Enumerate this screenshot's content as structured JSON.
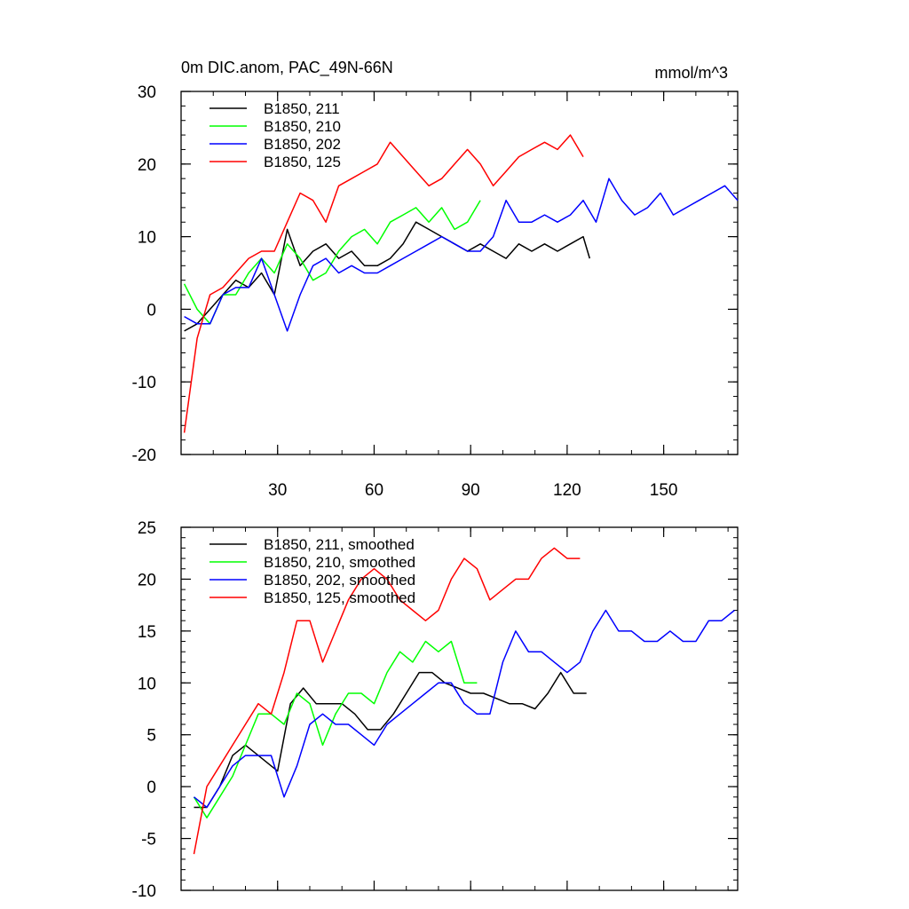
{
  "chart_data": [
    {
      "type": "line",
      "title": "0m DIC.anom, PAC_49N-66N",
      "units": "mmol/m^3",
      "xlim": [
        0,
        173
      ],
      "ylim": [
        -20,
        30
      ],
      "yticks": [
        -20,
        -10,
        0,
        10,
        20,
        30
      ],
      "xticks": [
        30,
        60,
        90,
        120,
        150
      ],
      "x_tick_labels_shown": true,
      "series": [
        {
          "name": "B1850, 211",
          "color": "#000000",
          "x": [
            1,
            5,
            9,
            13,
            17,
            21,
            25,
            29,
            33,
            37,
            41,
            45,
            49,
            53,
            57,
            61,
            65,
            69,
            73,
            77,
            81,
            85,
            89,
            93,
            97,
            101,
            105,
            109,
            113,
            117,
            121,
            125,
            127
          ],
          "values": [
            -3,
            -2,
            0,
            2,
            4,
            3,
            5,
            2,
            11,
            6,
            8,
            9,
            7,
            8,
            6,
            6,
            7,
            9,
            12,
            11,
            10,
            9,
            8,
            9,
            8,
            7,
            9,
            8,
            9,
            8,
            9,
            10,
            7
          ]
        },
        {
          "name": "B1850, 210",
          "color": "#00ff00",
          "x": [
            1,
            5,
            9,
            13,
            17,
            21,
            25,
            29,
            33,
            37,
            41,
            45,
            49,
            53,
            57,
            61,
            65,
            69,
            73,
            77,
            81,
            85,
            89,
            93
          ],
          "values": [
            3.5,
            0,
            -2,
            2,
            2,
            5,
            7,
            5,
            9,
            7,
            4,
            5,
            8,
            10,
            11,
            9,
            12,
            13,
            14,
            12,
            14,
            11,
            12,
            15
          ]
        },
        {
          "name": "B1850, 202",
          "color": "#0000ff",
          "x": [
            1,
            5,
            9,
            13,
            17,
            21,
            25,
            29,
            33,
            37,
            41,
            45,
            49,
            53,
            57,
            61,
            65,
            69,
            73,
            77,
            81,
            85,
            89,
            93,
            97,
            101,
            105,
            109,
            113,
            117,
            121,
            125,
            129,
            133,
            137,
            141,
            145,
            149,
            153,
            157,
            161,
            165,
            169,
            173
          ],
          "values": [
            -1,
            -2,
            -2,
            2,
            3,
            3,
            7,
            2,
            -3,
            2,
            6,
            7,
            5,
            6,
            5,
            5,
            6,
            7,
            8,
            9,
            10,
            9,
            8,
            8,
            10,
            15,
            12,
            12,
            13,
            12,
            13,
            15,
            12,
            18,
            15,
            13,
            14,
            16,
            13,
            14,
            15,
            16,
            17,
            15
          ]
        },
        {
          "name": "B1850, 125",
          "color": "#ff0000",
          "x": [
            1,
            5,
            9,
            13,
            17,
            21,
            25,
            29,
            33,
            37,
            41,
            45,
            49,
            53,
            57,
            61,
            65,
            69,
            73,
            77,
            81,
            85,
            89,
            93,
            97,
            101,
            105,
            109,
            113,
            117,
            121,
            125
          ],
          "values": [
            -17,
            -4,
            2,
            3,
            5,
            7,
            8,
            8,
            12,
            16,
            15,
            12,
            17,
            18,
            19,
            20,
            23,
            21,
            19,
            17,
            18,
            20,
            22,
            20,
            17,
            19,
            21,
            22,
            23,
            22,
            24,
            21
          ]
        }
      ]
    },
    {
      "type": "line",
      "title": "",
      "xlim": [
        0,
        173
      ],
      "ylim": [
        -10,
        25
      ],
      "yticks": [
        -10,
        -5,
        0,
        5,
        10,
        15,
        20,
        25
      ],
      "xticks": [
        30,
        60,
        90,
        120,
        150
      ],
      "x_tick_labels_shown": false,
      "series": [
        {
          "name": "B1850, 211, smoothed",
          "color": "#000000",
          "x": [
            4,
            8,
            12,
            16,
            20,
            24,
            28,
            30,
            34,
            38,
            42,
            46,
            50,
            54,
            58,
            62,
            66,
            70,
            74,
            78,
            82,
            86,
            90,
            94,
            98,
            102,
            106,
            110,
            114,
            118,
            122,
            126
          ],
          "values": [
            -2,
            -2,
            0,
            3,
            4,
            3,
            2,
            1.5,
            8,
            9.5,
            8,
            8,
            8,
            7,
            5.5,
            5.5,
            7,
            9,
            11,
            11,
            10,
            9.5,
            9,
            9,
            8.5,
            8,
            8,
            7.5,
            9,
            11,
            9,
            9
          ]
        },
        {
          "name": "B1850, 210, smoothed",
          "color": "#00ff00",
          "x": [
            4,
            8,
            12,
            16,
            20,
            24,
            28,
            32,
            36,
            40,
            44,
            48,
            52,
            56,
            60,
            64,
            68,
            72,
            76,
            80,
            84,
            88,
            92
          ],
          "values": [
            -1,
            -3,
            -1,
            1,
            4,
            7,
            7,
            6,
            9,
            8,
            4,
            7,
            9,
            9,
            8,
            11,
            13,
            12,
            14,
            13,
            14,
            10,
            10
          ]
        },
        {
          "name": "B1850, 202, smoothed",
          "color": "#0000ff",
          "x": [
            4,
            8,
            12,
            16,
            20,
            24,
            28,
            32,
            36,
            40,
            44,
            48,
            52,
            56,
            60,
            64,
            68,
            72,
            76,
            80,
            84,
            88,
            92,
            96,
            100,
            104,
            108,
            112,
            116,
            120,
            124,
            128,
            132,
            136,
            140,
            144,
            148,
            152,
            156,
            160,
            164,
            168,
            172
          ],
          "values": [
            -1,
            -2,
            0,
            2,
            3,
            3,
            3,
            -1,
            2,
            6,
            7,
            6,
            6,
            5,
            4,
            6,
            7,
            8,
            9,
            10,
            10,
            8,
            7,
            7,
            12,
            15,
            13,
            13,
            12,
            11,
            12,
            15,
            17,
            15,
            15,
            14,
            14,
            15,
            14,
            14,
            16,
            16,
            17
          ]
        },
        {
          "name": "B1850, 125, smoothed",
          "color": "#ff0000",
          "x": [
            4,
            8,
            12,
            16,
            20,
            24,
            28,
            32,
            36,
            40,
            44,
            48,
            52,
            56,
            60,
            64,
            68,
            72,
            76,
            80,
            84,
            88,
            92,
            96,
            100,
            104,
            108,
            112,
            116,
            120,
            124
          ],
          "values": [
            -6.5,
            0,
            2,
            4,
            6,
            8,
            7,
            11,
            16,
            16,
            12,
            15,
            18,
            20,
            21,
            20,
            18,
            17,
            16,
            17,
            20,
            22,
            21,
            18,
            19,
            20,
            20,
            22,
            23,
            22,
            22
          ]
        }
      ]
    }
  ]
}
